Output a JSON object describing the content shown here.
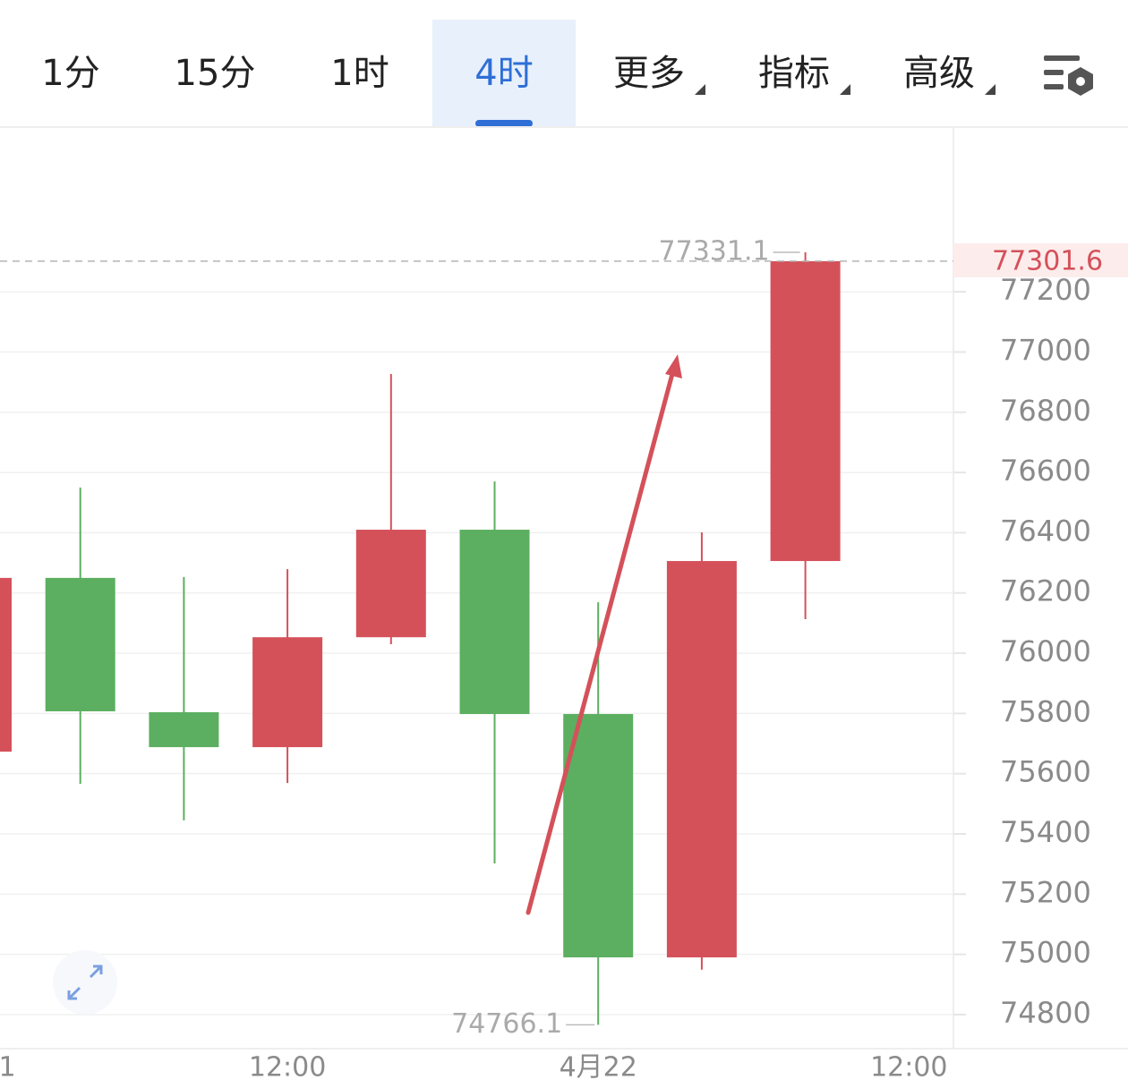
{
  "tabs": [
    "1分",
    "15分",
    "1时",
    "4时",
    "更多",
    "指标",
    "高级"
  ],
  "chart_data": {
    "type": "candlestick",
    "categories": [
      "1",
      null,
      null,
      "12:00",
      null,
      null,
      "4月22",
      null,
      null,
      "12:00"
    ],
    "open": [
      75673,
      76250,
      75804,
      75688,
      76053,
      76410,
      75798,
      74990,
      76306,
      null
    ],
    "high": [
      76250,
      76550,
      76253,
      76279,
      76927,
      76570,
      76169,
      76401,
      77331.1,
      null
    ],
    "low": [
      75673,
      75566,
      75445,
      75569,
      76030,
      75302,
      74766.1,
      74949,
      76113,
      null
    ],
    "close": [
      76250,
      75807,
      75688,
      76053,
      76410,
      75798,
      74990,
      76306,
      77301.6,
      null
    ],
    "up_color": "#d4515a",
    "down_color": "#5caf60",
    "ylim": [
      74687,
      77744
    ],
    "yticks": [
      74800,
      75000,
      75200,
      75400,
      75600,
      75800,
      76000,
      76200,
      76400,
      76600,
      76800,
      77000,
      77200
    ],
    "grid": true
  }
}
